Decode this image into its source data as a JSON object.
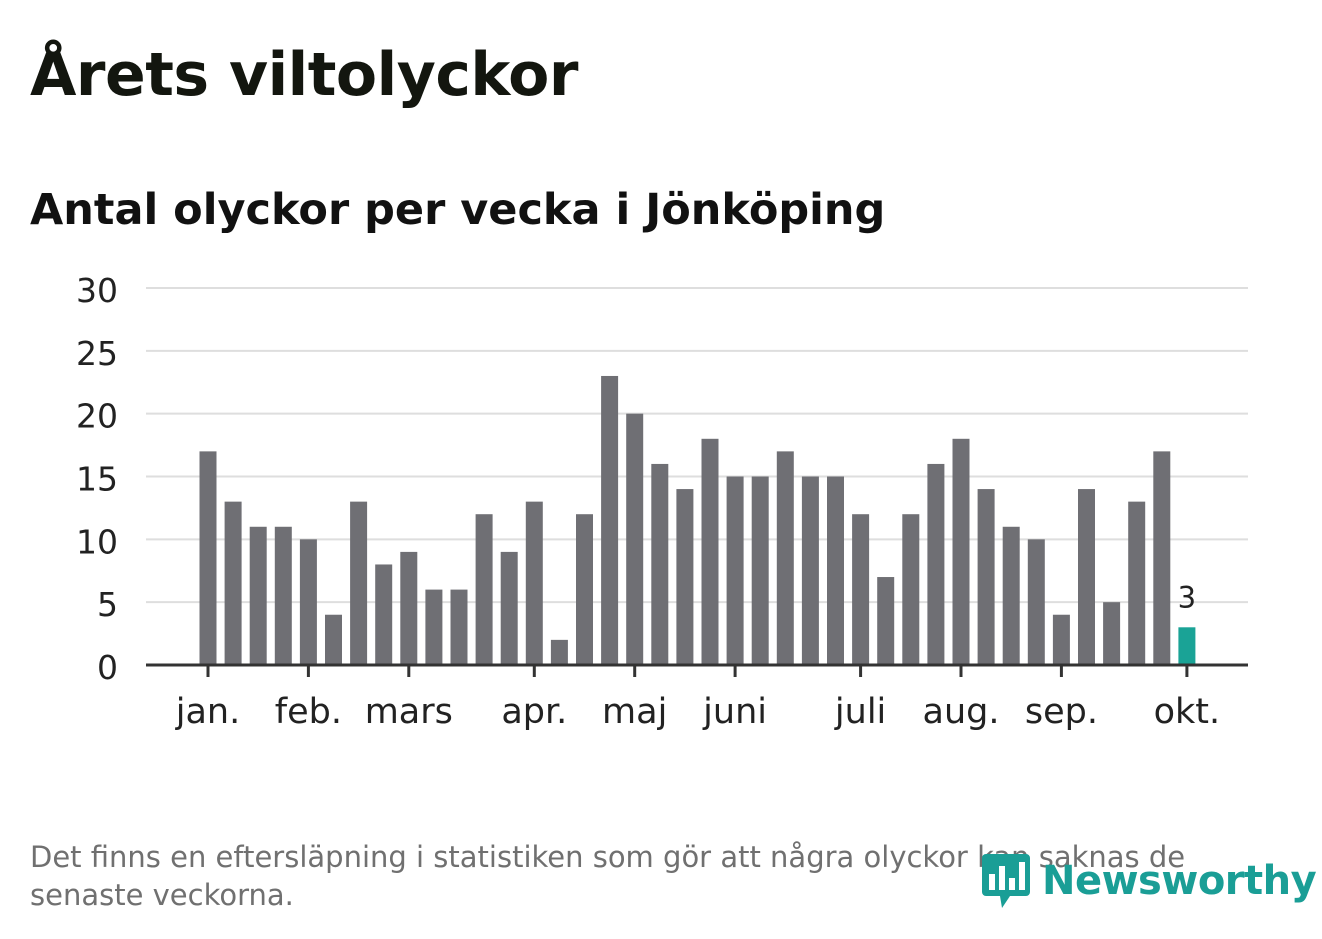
{
  "title": "Årets viltolyckor",
  "subtitle": "Antal olyckor per vecka i Jönköping",
  "footnote": "Det finns en eftersläpning i statistiken som gör att några olyckor kan saknas de senaste veckorna.",
  "brand": {
    "name": "Newsworthy",
    "icon": "newsworthy-logo-icon",
    "color": "#1a9e96"
  },
  "colors": {
    "bar": "#6f6f74",
    "highlight": "#1aa396",
    "grid": "#dedede",
    "axis": "#333333"
  },
  "chart_data": {
    "type": "bar",
    "title": "Antal olyckor per vecka i Jönköping",
    "xlabel": "",
    "ylabel": "",
    "ylim": [
      0,
      30
    ],
    "yticks": [
      0,
      5,
      10,
      15,
      20,
      25,
      30
    ],
    "grid": true,
    "weeks": [
      1,
      2,
      3,
      4,
      5,
      6,
      7,
      8,
      9,
      10,
      11,
      12,
      13,
      14,
      15,
      16,
      17,
      18,
      19,
      20,
      21,
      22,
      23,
      24,
      25,
      26,
      27,
      28,
      29,
      30,
      31,
      32,
      33,
      34,
      35,
      36,
      37,
      38,
      39,
      40
    ],
    "values": [
      17,
      13,
      11,
      11,
      10,
      4,
      13,
      8,
      9,
      6,
      6,
      12,
      9,
      13,
      2,
      12,
      23,
      20,
      16,
      14,
      18,
      15,
      15,
      17,
      15,
      15,
      12,
      7,
      12,
      16,
      18,
      14,
      11,
      10,
      4,
      14,
      5,
      13,
      17,
      3
    ],
    "month_ticks": [
      {
        "label": "jan.",
        "week": 1
      },
      {
        "label": "feb.",
        "week": 5
      },
      {
        "label": "mars",
        "week": 9
      },
      {
        "label": "apr.",
        "week": 14
      },
      {
        "label": "maj",
        "week": 18
      },
      {
        "label": "juni",
        "week": 22
      },
      {
        "label": "juli",
        "week": 27
      },
      {
        "label": "aug.",
        "week": 31
      },
      {
        "label": "sep.",
        "week": 35
      },
      {
        "label": "okt.",
        "week": 40
      }
    ],
    "highlight": {
      "week": 40,
      "value": 3,
      "label": "3"
    }
  }
}
